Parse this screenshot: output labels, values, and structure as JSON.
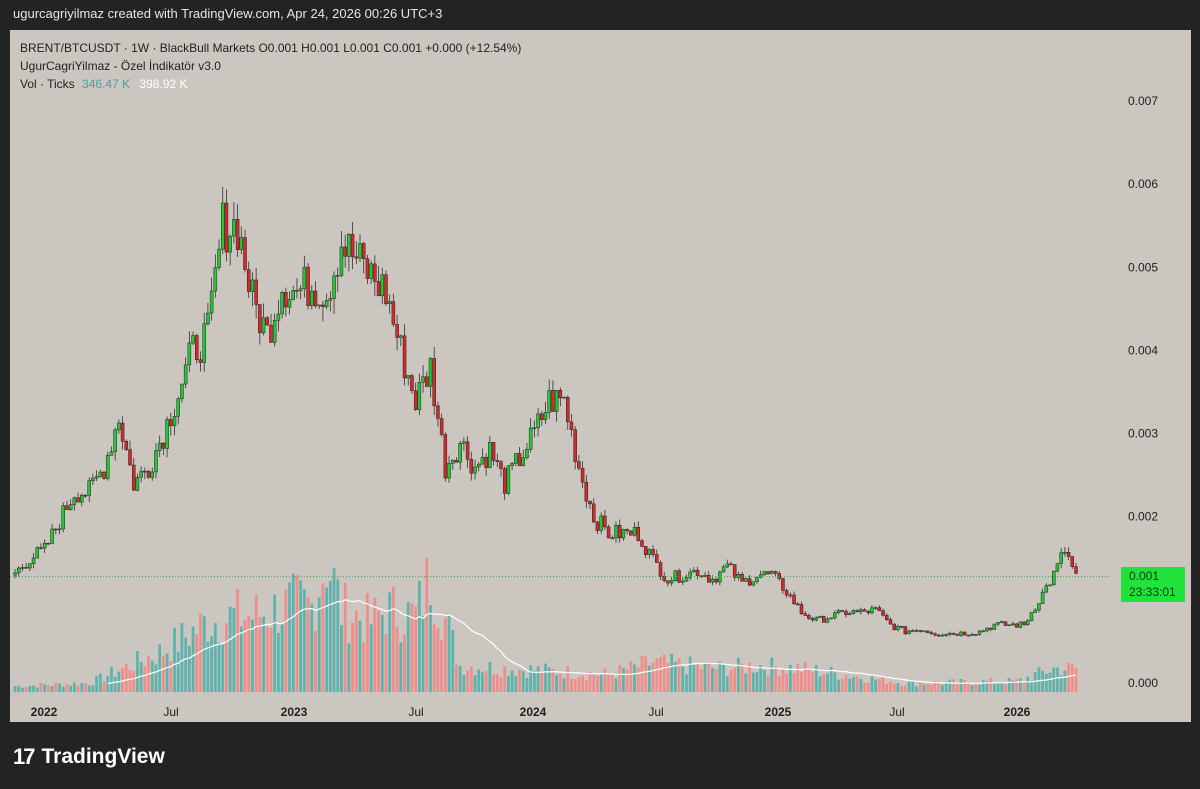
{
  "header": {
    "caption": "ugurcagriyilmaz created with TradingView.com, Apr 24, 2026 00:26 UTC+3"
  },
  "legend": {
    "line1": "BRENT/BTCUSDT · 1W · BlackBull Markets  O0.001  H0.001  L0.001  C0.001  +0.000 (+12.54%)",
    "line2": "UgurCagriYilmaz - Özel İndikatör v3.0",
    "vol_label": "Vol · Ticks",
    "vol_value_1": "346.47 K",
    "vol_value_2": "398.92 K"
  },
  "price_badge": {
    "price": "0.001",
    "countdown": "23:33:01"
  },
  "footer": {
    "logo_mark": "17",
    "logo_word": "TradingView"
  },
  "colors": {
    "background": "#cbc6c0",
    "up_candle": "#22c832",
    "down_candle": "#d42a2a",
    "up_volume": "#5fb3ad",
    "down_volume": "#ef8e8a",
    "volume_ma": "#ffffff",
    "current_price_line": "#3aa845"
  },
  "chart_data": {
    "type": "candlestick",
    "symbol": "BRENT/BTCUSDT",
    "interval": "1W",
    "y_axis": {
      "ticks": [
        0.0,
        0.001,
        0.002,
        0.003,
        0.004,
        0.005,
        0.006,
        0.007
      ],
      "range": [
        -0.0001,
        0.0077
      ]
    },
    "x_axis": {
      "tick_labels": [
        "2022",
        "Jul",
        "2023",
        "Jul",
        "2024",
        "Jul",
        "2025",
        "Jul",
        "2026"
      ]
    },
    "current_price": 0.00128,
    "closes_approx": [
      [
        0,
        0.00132
      ],
      [
        4,
        0.0015
      ],
      [
        8,
        0.0016
      ],
      [
        12,
        0.00195
      ],
      [
        16,
        0.0023
      ],
      [
        20,
        0.0023
      ],
      [
        24,
        0.0026
      ],
      [
        28,
        0.0032
      ],
      [
        32,
        0.0024
      ],
      [
        36,
        0.0026
      ],
      [
        40,
        0.003
      ],
      [
        44,
        0.0035
      ],
      [
        48,
        0.004
      ],
      [
        52,
        0.0042
      ],
      [
        56,
        0.0055
      ],
      [
        60,
        0.0055
      ],
      [
        64,
        0.0046
      ],
      [
        68,
        0.0042
      ],
      [
        72,
        0.0048
      ],
      [
        76,
        0.0047
      ],
      [
        80,
        0.0048
      ],
      [
        84,
        0.0047
      ],
      [
        88,
        0.0053
      ],
      [
        92,
        0.0051
      ],
      [
        96,
        0.0049
      ],
      [
        100,
        0.0047
      ],
      [
        104,
        0.004
      ],
      [
        108,
        0.0034
      ],
      [
        112,
        0.0038
      ],
      [
        116,
        0.0026
      ],
      [
        120,
        0.0029
      ],
      [
        124,
        0.0026
      ],
      [
        128,
        0.0028
      ],
      [
        132,
        0.0024
      ],
      [
        136,
        0.0027
      ],
      [
        140,
        0.003
      ],
      [
        144,
        0.0034
      ],
      [
        148,
        0.0034
      ],
      [
        152,
        0.0026
      ],
      [
        156,
        0.002
      ],
      [
        160,
        0.0018
      ],
      [
        164,
        0.0018
      ],
      [
        168,
        0.0018
      ],
      [
        172,
        0.00148
      ],
      [
        176,
        0.00125
      ],
      [
        180,
        0.0013
      ],
      [
        184,
        0.00135
      ],
      [
        188,
        0.00125
      ],
      [
        192,
        0.0014
      ],
      [
        196,
        0.0012
      ],
      [
        200,
        0.0013
      ],
      [
        204,
        0.0013
      ],
      [
        208,
        0.0011
      ],
      [
        212,
        0.00085
      ],
      [
        216,
        0.00075
      ],
      [
        220,
        0.0008
      ],
      [
        224,
        0.00085
      ],
      [
        228,
        0.00085
      ],
      [
        232,
        0.00088
      ],
      [
        236,
        0.0007
      ],
      [
        240,
        0.00062
      ],
      [
        244,
        0.00065
      ],
      [
        248,
        0.0006
      ],
      [
        252,
        0.0006
      ],
      [
        256,
        0.0006
      ],
      [
        260,
        0.00062
      ],
      [
        264,
        0.0007
      ],
      [
        268,
        0.0007
      ],
      [
        272,
        0.0007
      ],
      [
        276,
        0.001
      ],
      [
        280,
        0.0013
      ],
      [
        283,
        0.0016
      ],
      [
        286,
        0.00128
      ]
    ],
    "volume_peaks_approx": [
      [
        0,
        10
      ],
      [
        20,
        15
      ],
      [
        40,
        70
      ],
      [
        52,
        120
      ],
      [
        60,
        130
      ],
      [
        64,
        130
      ],
      [
        76,
        150
      ],
      [
        80,
        145
      ],
      [
        84,
        230
      ],
      [
        88,
        140
      ],
      [
        96,
        120
      ],
      [
        100,
        140
      ],
      [
        108,
        130
      ],
      [
        112,
        200
      ],
      [
        120,
        45
      ],
      [
        160,
        30
      ],
      [
        172,
        50
      ],
      [
        190,
        40
      ],
      [
        200,
        45
      ],
      [
        212,
        40
      ],
      [
        240,
        15
      ],
      [
        270,
        18
      ],
      [
        280,
        40
      ]
    ]
  }
}
